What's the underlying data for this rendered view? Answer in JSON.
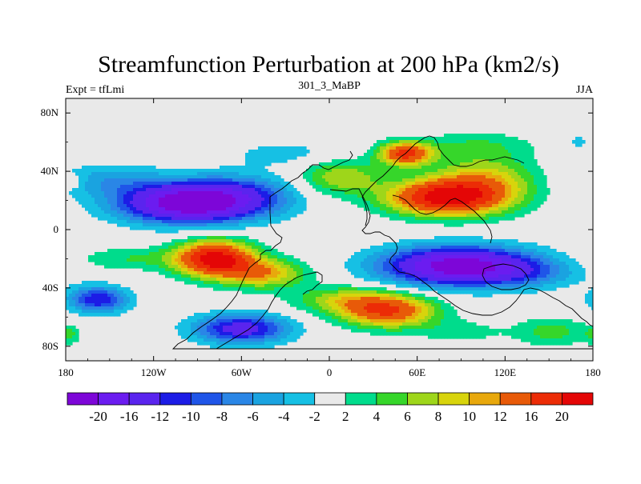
{
  "chart_data": {
    "type": "contour",
    "title": "Streamfunction Perturbation at 200 hPa (km2/s)",
    "left_label": "Expt = tfLmi",
    "center_label": "301_3_MaBP",
    "right_label": "JJA",
    "x_ticks": [
      "180",
      "120W",
      "60W",
      "0",
      "60E",
      "120E",
      "180"
    ],
    "x_tick_values": [
      -180,
      -120,
      -60,
      0,
      60,
      120,
      180
    ],
    "y_ticks": [
      "80N",
      "40N",
      "0",
      "40S",
      "80S"
    ],
    "y_tick_values": [
      80,
      40,
      0,
      -40,
      -80
    ],
    "xlim": [
      -180,
      180
    ],
    "ylim": [
      -90,
      90
    ],
    "levels": [
      -20,
      -16,
      -12,
      -10,
      -8,
      -6,
      -4,
      -2,
      2,
      4,
      6,
      8,
      10,
      12,
      16,
      20
    ],
    "level_labels": [
      "-20",
      "-16",
      "-12",
      "-10",
      "-8",
      "-6",
      "-4",
      "-2",
      "2",
      "4",
      "6",
      "8",
      "10",
      "12",
      "16",
      "20"
    ],
    "colors": [
      "#7d06d8",
      "#6b1cf0",
      "#5a24ee",
      "#1c1ce6",
      "#1f55e8",
      "#2a86e6",
      "#1aa3e0",
      "#16c0e4",
      "#e9e9e9",
      "#00dc8c",
      "#36d62a",
      "#9ed61a",
      "#d8d40c",
      "#e8a80c",
      "#e85a08",
      "#ec2c06",
      "#e40606"
    ],
    "blobs": [
      {
        "lon": -97,
        "lat": 18,
        "rx": 45,
        "ry": 13,
        "amp": -23
      },
      {
        "lon": -62,
        "lat": 24,
        "rx": 40,
        "ry": 14,
        "amp": -8
      },
      {
        "lon": -150,
        "lat": 34,
        "rx": 38,
        "ry": 11,
        "amp": -5
      },
      {
        "lon": -30,
        "lat": 52,
        "rx": 40,
        "ry": 9,
        "amp": -3
      },
      {
        "lon": 77,
        "lat": 22,
        "rx": 38,
        "ry": 12,
        "amp": 20
      },
      {
        "lon": 52,
        "lat": 52,
        "rx": 18,
        "ry": 8,
        "amp": 17
      },
      {
        "lon": 105,
        "lat": 32,
        "rx": 35,
        "ry": 18,
        "amp": 10
      },
      {
        "lon": 100,
        "lat": 58,
        "rx": 40,
        "ry": 10,
        "amp": 3.5
      },
      {
        "lon": 8,
        "lat": 36,
        "rx": 28,
        "ry": 12,
        "amp": 8
      },
      {
        "lon": -175,
        "lat": 33,
        "rx": 8,
        "ry": 5,
        "amp": 3
      },
      {
        "lon": 170,
        "lat": 60,
        "rx": 10,
        "ry": 7,
        "amp": -2.5
      },
      {
        "lon": -78,
        "lat": -20,
        "rx": 26,
        "ry": 12,
        "amp": 22
      },
      {
        "lon": -45,
        "lat": -30,
        "rx": 28,
        "ry": 10,
        "amp": 11
      },
      {
        "lon": -135,
        "lat": -20,
        "rx": 40,
        "ry": 8,
        "amp": 4
      },
      {
        "lon": 40,
        "lat": -56,
        "rx": 32,
        "ry": 11,
        "amp": 16
      },
      {
        "lon": 10,
        "lat": -48,
        "rx": 35,
        "ry": 9,
        "amp": 7
      },
      {
        "lon": 88,
        "lat": -25,
        "rx": 50,
        "ry": 13,
        "amp": -23
      },
      {
        "lon": 135,
        "lat": -30,
        "rx": 35,
        "ry": 10,
        "amp": -4.5
      },
      {
        "lon": -60,
        "lat": -68,
        "rx": 32,
        "ry": 10,
        "amp": -14
      },
      {
        "lon": -158,
        "lat": -48,
        "rx": 20,
        "ry": 9,
        "amp": -12
      },
      {
        "lon": 152,
        "lat": -70,
        "rx": 25,
        "ry": 10,
        "amp": 5
      },
      {
        "lon": 90,
        "lat": -70,
        "rx": 30,
        "ry": 8,
        "amp": 3
      },
      {
        "lon": -178,
        "lat": -72,
        "rx": 8,
        "ry": 6,
        "amp": 4
      }
    ]
  }
}
